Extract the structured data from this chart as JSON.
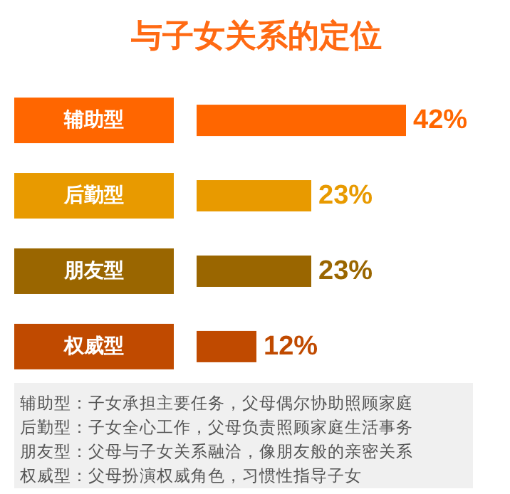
{
  "chart_data": {
    "type": "bar",
    "orientation": "horizontal",
    "title": "与子女关系的定位",
    "categories": [
      "辅助型",
      "后勤型",
      "朋友型",
      "权威型"
    ],
    "values": [
      42,
      23,
      23,
      12
    ],
    "value_labels": [
      "42%",
      "23%",
      "23%",
      "12%"
    ],
    "colors": [
      "#ff6600",
      "#e89a00",
      "#9a6600",
      "#c04a00"
    ],
    "annotations": [
      "辅助型：子女承担主要任务，父母偶尔协助照顾家庭",
      "后勤型：子女全心工作，父母负责照顾家庭生活事务",
      "朋友型：父母与子女关系融洽，像朋友般的亲密关系",
      "权威型：父母扮演权威角色，习惯性指导子女"
    ]
  }
}
